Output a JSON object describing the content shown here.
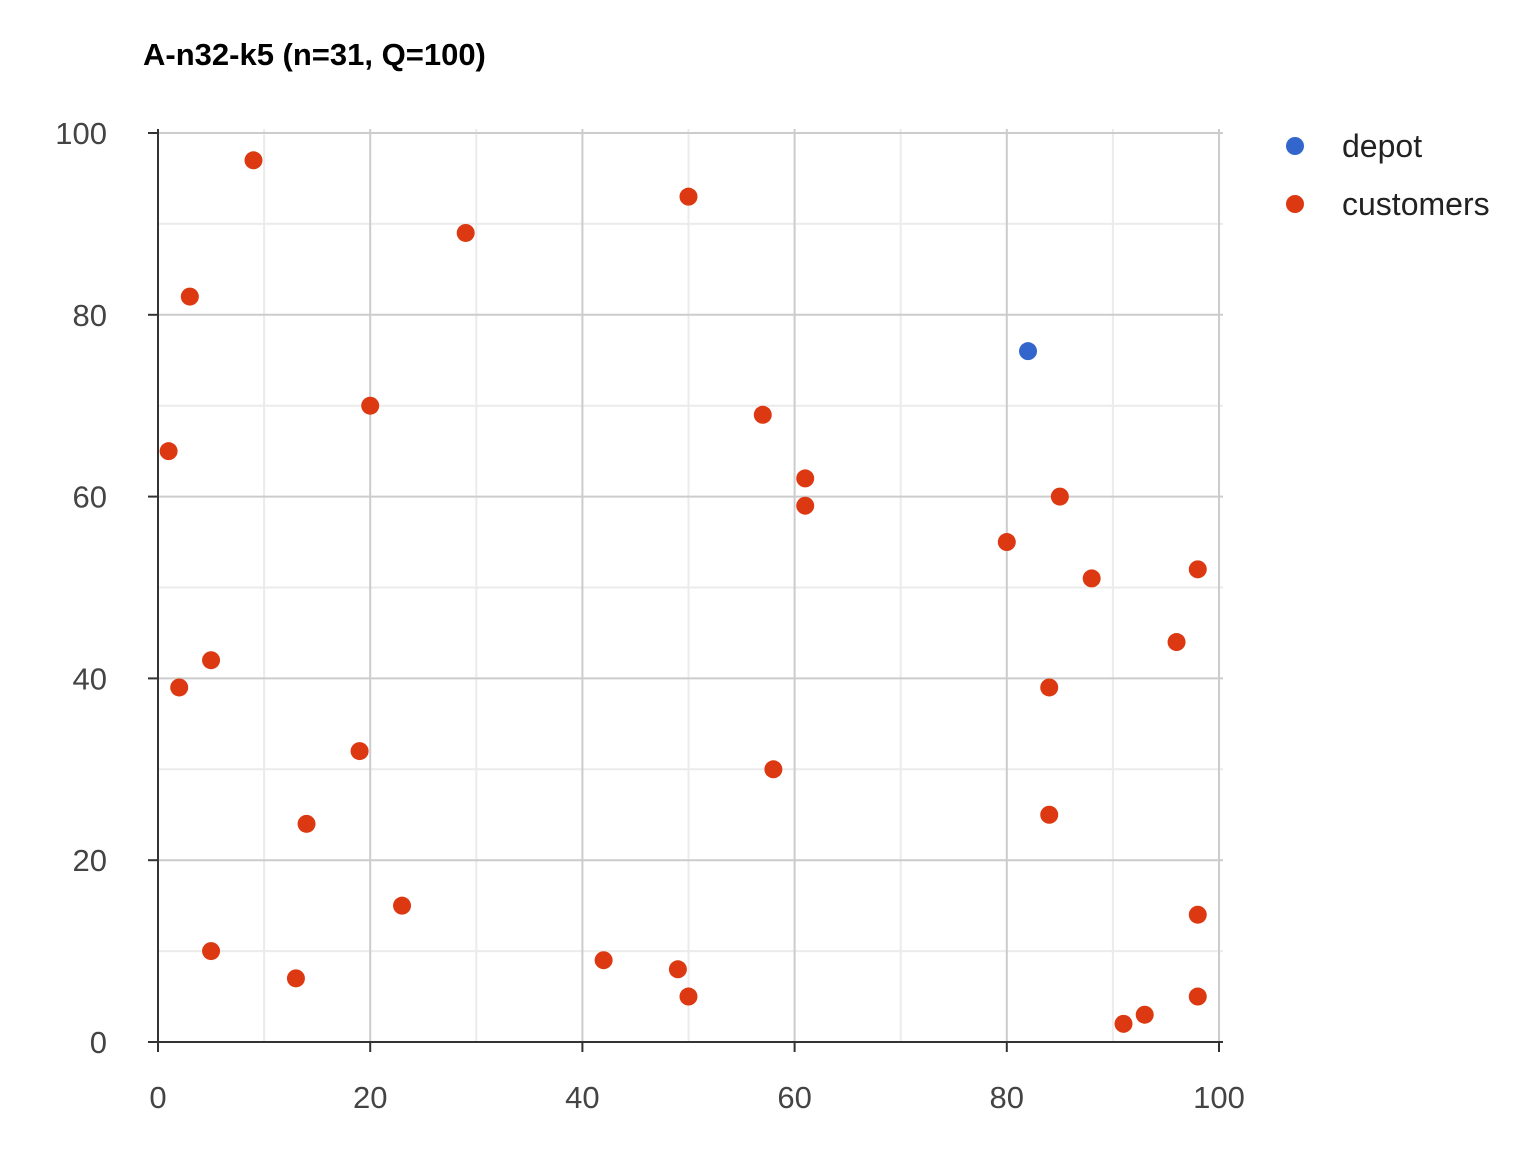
{
  "chart_data": {
    "type": "scatter",
    "title": "A-n32-k5 (n=31, Q=100)",
    "xlabel": "",
    "ylabel": "",
    "xlim": [
      0,
      100
    ],
    "ylim": [
      0,
      100
    ],
    "xticks": [
      0,
      20,
      40,
      60,
      80,
      100
    ],
    "yticks": [
      0,
      20,
      40,
      60,
      80,
      100
    ],
    "minor_grid_step": 10,
    "grid": true,
    "legend_position": "right",
    "series": [
      {
        "name": "depot",
        "color": "#3366cc",
        "points": [
          {
            "x": 82,
            "y": 76
          }
        ]
      },
      {
        "name": "customers",
        "color": "#dc3912",
        "points": [
          {
            "x": 1,
            "y": 65
          },
          {
            "x": 2,
            "y": 39
          },
          {
            "x": 3,
            "y": 82
          },
          {
            "x": 5,
            "y": 42
          },
          {
            "x": 5,
            "y": 10
          },
          {
            "x": 9,
            "y": 97
          },
          {
            "x": 13,
            "y": 7
          },
          {
            "x": 14,
            "y": 24
          },
          {
            "x": 19,
            "y": 32
          },
          {
            "x": 20,
            "y": 70
          },
          {
            "x": 23,
            "y": 15
          },
          {
            "x": 29,
            "y": 89
          },
          {
            "x": 42,
            "y": 9
          },
          {
            "x": 49,
            "y": 8
          },
          {
            "x": 50,
            "y": 93
          },
          {
            "x": 50,
            "y": 5
          },
          {
            "x": 57,
            "y": 69
          },
          {
            "x": 58,
            "y": 30
          },
          {
            "x": 61,
            "y": 62
          },
          {
            "x": 61,
            "y": 59
          },
          {
            "x": 80,
            "y": 55
          },
          {
            "x": 84,
            "y": 39
          },
          {
            "x": 84,
            "y": 25
          },
          {
            "x": 85,
            "y": 60
          },
          {
            "x": 88,
            "y": 51
          },
          {
            "x": 91,
            "y": 2
          },
          {
            "x": 93,
            "y": 3
          },
          {
            "x": 96,
            "y": 44
          },
          {
            "x": 98,
            "y": 52
          },
          {
            "x": 98,
            "y": 14
          },
          {
            "x": 98,
            "y": 5
          }
        ]
      }
    ]
  }
}
